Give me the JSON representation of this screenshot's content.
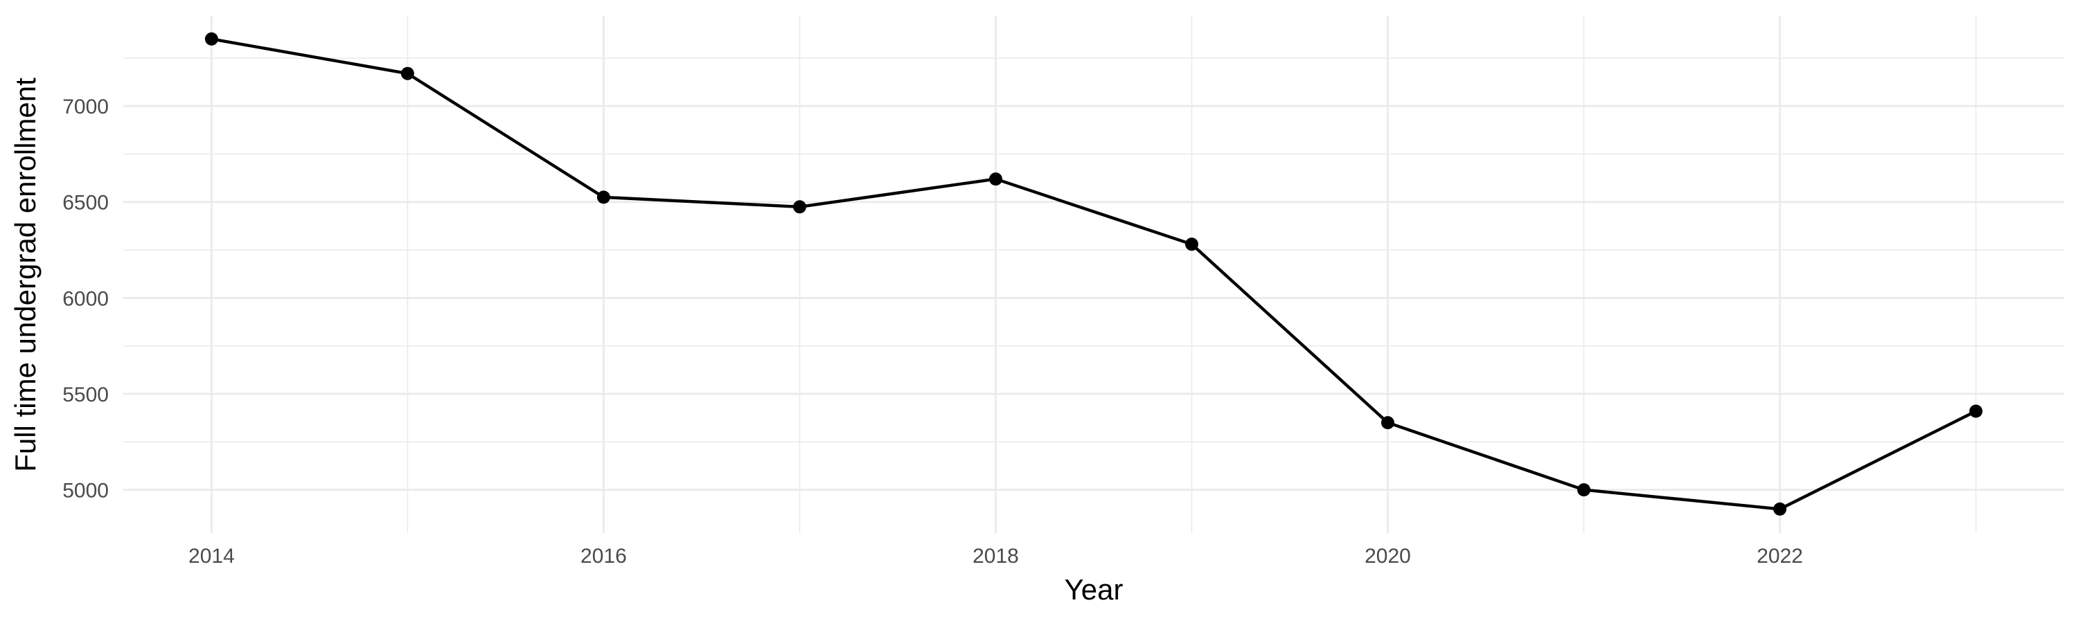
{
  "chart_data": {
    "type": "line",
    "title": "",
    "xlabel": "Year",
    "ylabel": "Full time undergrad enrollment",
    "x": [
      2014,
      2015,
      2016,
      2017,
      2018,
      2019,
      2020,
      2021,
      2022,
      2023
    ],
    "series": [
      {
        "name": "Full time undergrad enrollment",
        "values": [
          7350,
          7170,
          6525,
          6475,
          6620,
          6280,
          5350,
          5000,
          4900,
          5410
        ]
      }
    ],
    "x_ticks": [
      2014,
      2016,
      2018,
      2020,
      2022
    ],
    "x_minor_gridlines": [
      2015,
      2017,
      2019,
      2021,
      2023
    ],
    "y_ticks": [
      5000,
      5500,
      6000,
      6500,
      7000
    ],
    "y_minor_gridlines": [
      5250,
      5750,
      6250,
      6750,
      7250
    ],
    "xlim": [
      2013.55,
      2023.45
    ],
    "ylim": [
      4775,
      7470
    ],
    "grid": "on",
    "legend": "none",
    "style": {
      "background_color": "#ffffff",
      "gridline_color": "#ebebeb",
      "line_color": "#000000",
      "point_color": "#000000",
      "tick_label_color": "#4a4a4a",
      "axis_title_color": "#000000"
    }
  }
}
